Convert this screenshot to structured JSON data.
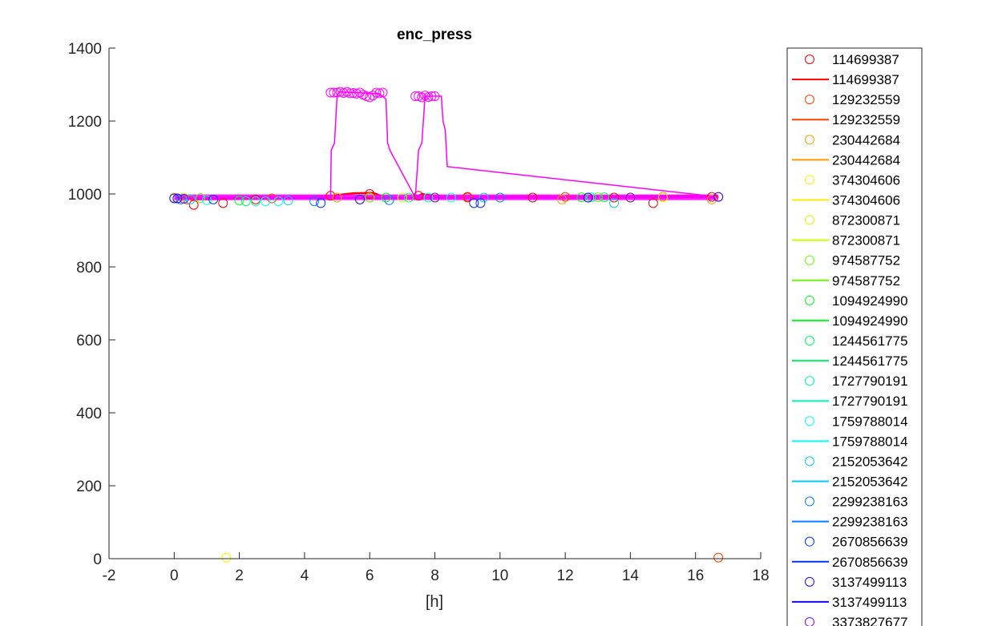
{
  "chart_data": {
    "type": "scatter",
    "title": "enc_press",
    "xlabel": "[h]",
    "ylabel": "",
    "xlim": [
      -2,
      18
    ],
    "ylim": [
      0,
      1400
    ],
    "xticks": [
      "-2",
      "0",
      "2",
      "4",
      "6",
      "8",
      "10",
      "12",
      "14",
      "16",
      "18"
    ],
    "yticks": [
      "0",
      "200",
      "400",
      "600",
      "800",
      "1000",
      "1200",
      "1400"
    ],
    "grid": false,
    "legend_position": "outside-right",
    "legend_entries": [
      "114699387",
      "114699387",
      "129232559",
      "129232559",
      "230442684",
      "230442684",
      "374304606",
      "374304606",
      "872300871",
      "872300871",
      "974587752",
      "974587752",
      "1094924990",
      "1094924990",
      "1244561775",
      "1244561775",
      "1727790191",
      "1727790191",
      "1759788014",
      "1759788014",
      "2152053642",
      "2152053642",
      "2299238163",
      "2299238163",
      "2670856639",
      "2670856639",
      "3137499113",
      "3137499113",
      "3373827677"
    ],
    "series": [
      {
        "name": "114699387",
        "color": "#ff0000",
        "line_x": [
          0.5,
          4,
          4.8,
          5.5,
          6.1,
          6.5,
          7.4,
          7.6,
          8.2,
          12,
          16.7
        ],
        "line_y": [
          985,
          990,
          995,
          1002,
          1003,
          990,
          990,
          1000,
          992,
          992,
          995
        ],
        "marker_x": [
          0.6,
          1.5,
          2.5,
          4.8,
          6.0,
          7.5,
          9.0,
          11.0,
          13.5,
          14.7,
          16.5
        ],
        "marker_y": [
          970,
          975,
          985,
          995,
          1000,
          995,
          992,
          990,
          990,
          975,
          992
        ]
      },
      {
        "name": "129232559",
        "color": "#ff4000",
        "line_x": [
          0.2,
          8,
          16.7
        ],
        "line_y": [
          988,
          990,
          992
        ],
        "marker_x": [
          0.4,
          3,
          6,
          9,
          12,
          15,
          16.7
        ],
        "marker_y": [
          985,
          988,
          990,
          990,
          992,
          992,
          3
        ]
      },
      {
        "name": "230442684",
        "color": "#ff9900",
        "line_x": [
          0.1,
          8,
          16.7
        ],
        "line_y": [
          989,
          990,
          992
        ],
        "marker_x": [
          0.0,
          5,
          11.9,
          16.5
        ],
        "marker_y": [
          990,
          990,
          985,
          985
        ]
      },
      {
        "name": "374304606",
        "color": "#ffee00",
        "line_x": [
          0.1,
          16.7
        ],
        "line_y": [
          990,
          991
        ],
        "marker_x": [
          0.1,
          1.6,
          8,
          15
        ],
        "marker_y": [
          988,
          3,
          990,
          991
        ]
      },
      {
        "name": "872300871",
        "color": "#ccff00",
        "line_x": [
          0.1,
          16.7
        ],
        "line_y": [
          990,
          991
        ],
        "marker_x": [
          0.3,
          7,
          14
        ],
        "marker_y": [
          990,
          990,
          991
        ]
      },
      {
        "name": "974587752",
        "color": "#66ff00",
        "line_x": [
          0.1,
          16.7
        ],
        "line_y": [
          990,
          991
        ],
        "marker_x": [
          0.8,
          6,
          13
        ],
        "marker_y": [
          989,
          990,
          991
        ]
      },
      {
        "name": "1094924990",
        "color": "#00ff1a",
        "line_x": [
          0.1,
          16.7
        ],
        "line_y": [
          990,
          991
        ],
        "marker_x": [
          2.0,
          6.5,
          12.5
        ],
        "marker_y": [
          982,
          990,
          991
        ]
      },
      {
        "name": "1244561775",
        "color": "#00ff66",
        "line_x": [
          0.1,
          16.7
        ],
        "line_y": [
          990,
          991
        ],
        "marker_x": [
          2.2,
          7.2,
          13.2
        ],
        "marker_y": [
          980,
          990,
          991
        ]
      },
      {
        "name": "1727790191",
        "color": "#00ffb3",
        "line_x": [
          0.1,
          16.7
        ],
        "line_y": [
          989,
          991
        ],
        "marker_x": [
          2.5,
          7.8,
          12.8
        ],
        "marker_y": [
          980,
          990,
          991
        ]
      },
      {
        "name": "1759788014",
        "color": "#00ffff",
        "line_x": [
          0.1,
          16.7
        ],
        "line_y": [
          989,
          991
        ],
        "marker_x": [
          1.0,
          2.8,
          3.2,
          8.5
        ],
        "marker_y": [
          983,
          980,
          980,
          990
        ]
      },
      {
        "name": "2152053642",
        "color": "#00ccff",
        "line_x": [
          0.1,
          16.7
        ],
        "line_y": [
          989,
          991
        ],
        "marker_x": [
          0.5,
          3.5,
          9.5,
          13.5
        ],
        "marker_y": [
          985,
          982,
          990,
          975
        ]
      },
      {
        "name": "2299238163",
        "color": "#0080ff",
        "line_x": [
          0.1,
          16.7
        ],
        "line_y": [
          988,
          991
        ],
        "marker_x": [
          0.2,
          4.3,
          6.6,
          10
        ],
        "marker_y": [
          985,
          980,
          983,
          990
        ]
      },
      {
        "name": "2670856639",
        "color": "#0033ff",
        "line_x": [
          0.1,
          16.7
        ],
        "line_y": [
          988,
          991
        ],
        "marker_x": [
          0.0,
          1.2,
          4.5,
          9.2,
          9.4
        ],
        "marker_y": [
          988,
          985,
          975,
          975,
          975
        ]
      },
      {
        "name": "3137499113",
        "color": "#1a00ff",
        "line_x": [
          0.1,
          16.7
        ],
        "line_y": [
          988,
          991
        ],
        "marker_x": [
          0.1,
          5.7,
          12.7,
          16.7
        ],
        "marker_y": [
          988,
          985,
          990,
          992
        ]
      },
      {
        "name": "3373827677",
        "color": "#8000ff",
        "line_x": [
          0.1,
          16.7
        ],
        "line_y": [
          988,
          991
        ],
        "marker_x": [
          0.3,
          8.0,
          14.0
        ],
        "marker_y": [
          987,
          990,
          990
        ]
      },
      {
        "name": "",
        "color": "#ff00ff",
        "line_x": [
          0.5,
          4.8,
          4.82,
          4.92,
          5.0,
          5.05,
          6.3,
          6.5,
          6.55,
          6.62,
          7.4,
          7.5,
          7.6,
          7.7,
          8.2,
          8.25,
          8.32,
          8.38,
          16.7
        ],
        "line_y": [
          990,
          995,
          1120,
          1140,
          1270,
          1280,
          1275,
          1260,
          1140,
          1120,
          990,
          1120,
          1140,
          1268,
          1268,
          1200,
          1175,
          1075,
          992
        ],
        "marker_x": [
          4.8,
          4.9,
          5.0,
          5.1,
          5.2,
          5.3,
          5.4,
          5.5,
          5.6,
          5.7,
          5.8,
          5.9,
          6.0,
          6.1,
          6.2,
          6.3,
          6.4,
          7.4,
          7.5,
          7.6,
          7.7,
          7.8,
          7.9,
          8.0
        ],
        "marker_y": [
          1278,
          1278,
          1278,
          1280,
          1277,
          1280,
          1276,
          1277,
          1275,
          1278,
          1272,
          1268,
          1265,
          1270,
          1278,
          1276,
          1278,
          1268,
          1268,
          1265,
          1270,
          1266,
          1268,
          1268
        ],
        "band_x": [
          0.0,
          16.7
        ],
        "band_y": [
          990,
          992
        ]
      }
    ]
  }
}
